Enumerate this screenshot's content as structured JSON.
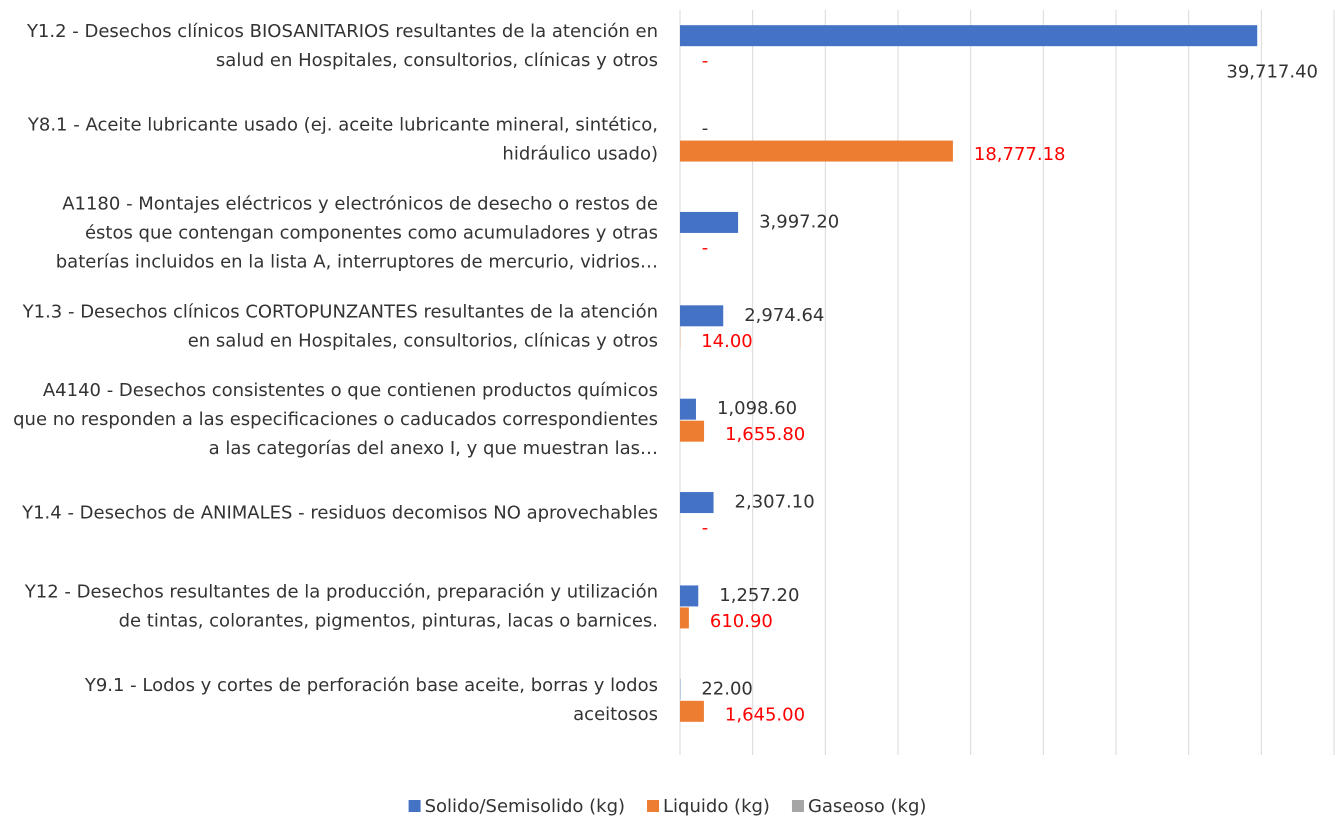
{
  "chart_data": {
    "type": "bar",
    "orientation": "horizontal",
    "categories": [
      "Y1.2 - Desechos clínicos BIOSANITARIOS resultantes de la atención en salud en Hospitales, consultorios, clínicas y otros",
      "Y8.1 - Aceite lubricante usado (ej. aceite lubricante mineral, sintético, hidráulico usado)",
      "A1180 - Montajes eléctricos y electrónicos de desecho o restos de éstos que contengan componentes como acumuladores y otras baterías incluidos en la lista A, interruptores de mercurio, vidrios…",
      "Y1.3 - Desechos clínicos CORTOPUNZANTES resultantes de la atención en salud en Hospitales, consultorios, clínicas y otros",
      "A4140 - Desechos consistentes o que contienen productos químicos que no responden a las especificaciones o caducados correspondientes a las categorías del anexo I, y que muestran las…",
      "Y1.4 - Desechos de ANIMALES - residuos decomisos NO aprovechables",
      "Y12 - Desechos resultantes de la producción, preparación y utilización de tintas, colorantes, pigmentos, pinturas, lacas o barnices.",
      "Y9.1 - Lodos y cortes de perforación base aceite, borras y lodos aceitosos"
    ],
    "series": [
      {
        "name": "Solido/Semisolido (kg)",
        "color": "#4472c4",
        "label_color": "#333333",
        "values": [
          39717.4,
          0,
          3997.2,
          2974.64,
          1098.6,
          2307.1,
          1257.2,
          22
        ],
        "value_labels": [
          "39,717.40",
          "-",
          "3,997.20",
          "2,974.64",
          "1,098.60",
          "2,307.10",
          "1,257.20",
          "22.00"
        ]
      },
      {
        "name": "Liquido (kg)",
        "color": "#ed7d31",
        "label_color": "#ff0000",
        "values": [
          0,
          18777.18,
          0,
          14,
          1655.8,
          0,
          610.9,
          1645
        ],
        "value_labels": [
          "-",
          "18,777.18",
          "-",
          "14.00",
          "1,655.80",
          "-",
          "610.90",
          "1,645.00"
        ]
      },
      {
        "name": "Gaseoso (kg)",
        "color": "#a5a5a5",
        "values": [
          0,
          0,
          0,
          0,
          0,
          0,
          0,
          0
        ]
      }
    ],
    "xlim": [
      0,
      45000
    ],
    "xticks": [
      0,
      5000,
      10000,
      15000,
      20000,
      25000,
      30000,
      35000,
      40000,
      45000
    ],
    "grid": true,
    "legend": "bottom"
  }
}
